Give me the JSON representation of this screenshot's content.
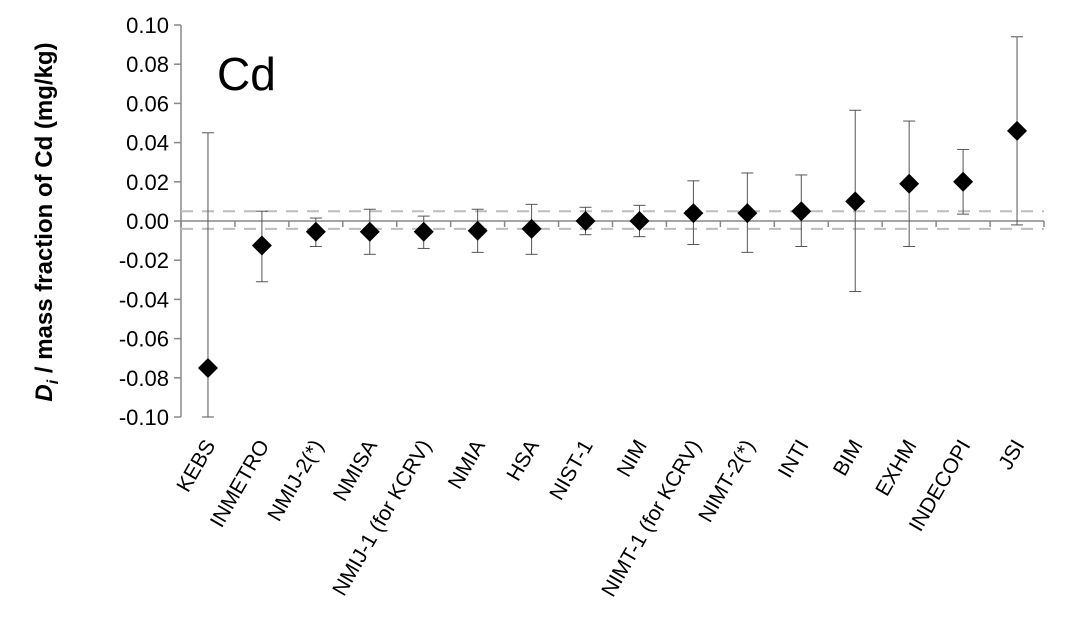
{
  "chart_data": {
    "type": "scatter",
    "panel_label": "Cd",
    "ylabel": {
      "symbol": "D",
      "subscript": "i",
      "rest": " / mass fraction of Cd (mg/kg)"
    },
    "xlabel": "",
    "ylim": [
      -0.1,
      0.1
    ],
    "ytick_step": 0.02,
    "yticks": [
      "0.10",
      "0.08",
      "0.06",
      "0.04",
      "0.02",
      "0.00",
      "-0.02",
      "-0.04",
      "-0.06",
      "-0.08",
      "-0.10"
    ],
    "grid": false,
    "marker": "diamond",
    "marker_color": "#000000",
    "categories": [
      "KEBS",
      "INMETRO",
      "NMIJ-2(*)",
      "NMISA",
      "NMIJ-1 (for KCRV)",
      "NMIA",
      "HSA",
      "NIST-1",
      "NIM",
      "NIMT-1 (for KCRV)",
      "NIMT-2(*)",
      "INTI",
      "BIM",
      "EXHM",
      "INDECOPI",
      "JSI"
    ],
    "values": [
      -0.075,
      -0.0125,
      -0.0055,
      -0.0055,
      -0.0055,
      -0.005,
      -0.004,
      0.0,
      0.0,
      0.004,
      0.004,
      0.005,
      0.01,
      0.019,
      0.02,
      0.046
    ],
    "error_low": [
      -0.1,
      -0.031,
      -0.013,
      -0.017,
      -0.014,
      -0.016,
      -0.017,
      -0.007,
      -0.008,
      -0.012,
      -0.016,
      -0.013,
      -0.036,
      -0.013,
      0.0035,
      -0.002
    ],
    "error_high": [
      0.045,
      0.005,
      0.0015,
      0.006,
      0.0025,
      0.006,
      0.0085,
      0.007,
      0.008,
      0.0205,
      0.0245,
      0.0235,
      0.0565,
      0.051,
      0.0365,
      0.094
    ],
    "reference_band": [
      -0.004,
      0.005
    ],
    "reference_band_style": "dashed"
  }
}
